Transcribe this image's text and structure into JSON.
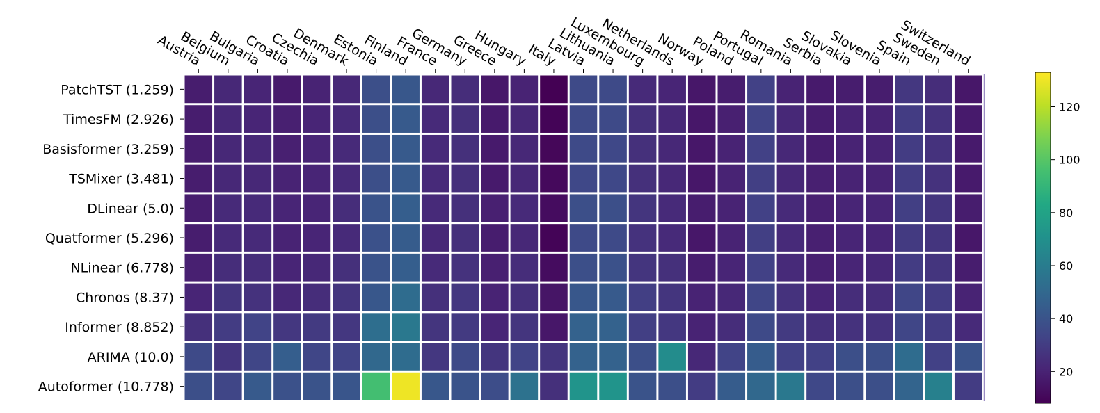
{
  "chart_data": {
    "type": "heatmap",
    "title": "",
    "xlabel": "",
    "ylabel": "",
    "columns": [
      "Austria",
      "Belgium",
      "Bulgaria",
      "Croatia",
      "Czechia",
      "Denmark",
      "Estonia",
      "Finland",
      "France",
      "Germany",
      "Greece",
      "Hungary",
      "Italy",
      "Latvia",
      "Lithuania",
      "Luxembourg",
      "Netherlands",
      "Norway",
      "Poland",
      "Portugal",
      "Romania",
      "Serbia",
      "Slovakia",
      "Slovenia",
      "Spain",
      "Sweden",
      "Switzerland"
    ],
    "rows": [
      "PatchTST (1.259)",
      "TimesFM (2.926)",
      "Basisformer (3.259)",
      "TSMixer (3.481)",
      "DLinear (5.0)",
      "Quatformer (5.296)",
      "NLinear (6.778)",
      "Chronos (8.37)",
      "Informer (8.852)",
      "ARIMA (10.0)",
      "Autoformer (10.778)"
    ],
    "values": [
      [
        18,
        22,
        21,
        17,
        20,
        22,
        38,
        42,
        22,
        24,
        16,
        20,
        8,
        36,
        36,
        23,
        21,
        16,
        18,
        32,
        20,
        17,
        18,
        18,
        28,
        24,
        16
      ],
      [
        18,
        22,
        21,
        19,
        21,
        23,
        38,
        43,
        23,
        25,
        17,
        22,
        9,
        36,
        36,
        25,
        22,
        16,
        19,
        33,
        22,
        18,
        20,
        20,
        30,
        26,
        17
      ],
      [
        18,
        22,
        22,
        19,
        21,
        23,
        38,
        43,
        23,
        25,
        17,
        22,
        10,
        36,
        35,
        25,
        22,
        16,
        20,
        32,
        22,
        18,
        20,
        20,
        30,
        26,
        17
      ],
      [
        18,
        22,
        22,
        20,
        21,
        23,
        38,
        43,
        23,
        25,
        17,
        22,
        11,
        35,
        35,
        25,
        22,
        16,
        20,
        31,
        22,
        19,
        20,
        20,
        30,
        26,
        17
      ],
      [
        18,
        23,
        23,
        21,
        21,
        24,
        40,
        45,
        23,
        25,
        19,
        23,
        12,
        38,
        38,
        27,
        23,
        18,
        20,
        32,
        23,
        19,
        21,
        21,
        31,
        27,
        18
      ],
      [
        18,
        23,
        23,
        20,
        21,
        23,
        39,
        44,
        22,
        25,
        18,
        22,
        9,
        36,
        36,
        26,
        23,
        16,
        20,
        31,
        23,
        19,
        21,
        21,
        29,
        27,
        16
      ],
      [
        19,
        24,
        24,
        21,
        22,
        25,
        40,
        45,
        23,
        26,
        19,
        24,
        12,
        38,
        39,
        27,
        25,
        18,
        21,
        32,
        23,
        19,
        21,
        22,
        30,
        27,
        18
      ],
      [
        21,
        27,
        26,
        22,
        24,
        27,
        42,
        52,
        25,
        28,
        20,
        25,
        15,
        42,
        43,
        31,
        27,
        20,
        22,
        34,
        26,
        21,
        24,
        24,
        34,
        30,
        20
      ],
      [
        25,
        30,
        33,
        28,
        29,
        28,
        53,
        58,
        27,
        29,
        21,
        27,
        16,
        47,
        47,
        31,
        28,
        20,
        24,
        36,
        29,
        25,
        26,
        26,
        34,
        30,
        23
      ],
      [
        36,
        27,
        34,
        45,
        34,
        33,
        50,
        52,
        28,
        36,
        27,
        33,
        27,
        47,
        47,
        38,
        68,
        22,
        33,
        44,
        32,
        32,
        38,
        38,
        52,
        32,
        40
      ],
      [
        38,
        34,
        43,
        39,
        40,
        41,
        95,
        130,
        42,
        40,
        37,
        55,
        25,
        72,
        72,
        40,
        38,
        30,
        44,
        50,
        58,
        35,
        38,
        38,
        48,
        62,
        30
      ]
    ],
    "colorbar": {
      "min": 8,
      "max": 133,
      "ticks": [
        20,
        40,
        60,
        80,
        100,
        120
      ],
      "colormap": "viridis"
    },
    "grid": false
  }
}
